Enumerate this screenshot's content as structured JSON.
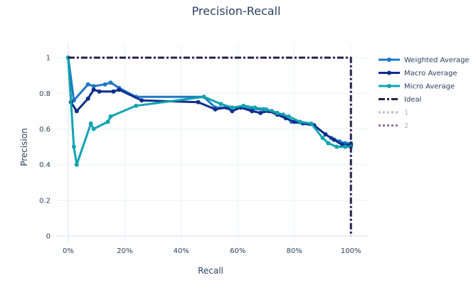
{
  "chart_data": {
    "type": "line",
    "title": "Precision-Recall",
    "xlabel": "Recall",
    "ylabel": "Precision",
    "xlim": [
      -0.04,
      1.06
    ],
    "ylim": [
      -0.04,
      1.08
    ],
    "xticks": [
      0,
      0.2,
      0.4,
      0.6,
      0.8,
      1.0
    ],
    "xtick_labels": [
      "0%",
      "20%",
      "40%",
      "60%",
      "80%",
      "100%"
    ],
    "yticks": [
      0,
      0.2,
      0.4,
      0.6,
      0.8,
      1.0
    ],
    "ytick_labels": [
      "0",
      "0.2",
      "0.4",
      "0.6",
      "0.8",
      "1"
    ],
    "grid": true,
    "legend_position": "right",
    "series": [
      {
        "name": "Weighted Average",
        "color": "#1f77c4",
        "style": "solid-markers",
        "x": [
          0,
          0.02,
          0.07,
          0.09,
          0.13,
          0.15,
          0.18,
          0.24,
          0.48,
          0.52,
          0.57,
          0.61,
          0.65,
          0.69,
          0.72,
          0.76,
          0.79,
          0.83,
          0.87,
          0.91,
          0.93,
          0.96,
          0.98,
          1.0
        ],
        "y": [
          1.0,
          0.76,
          0.85,
          0.84,
          0.85,
          0.86,
          0.83,
          0.78,
          0.78,
          0.72,
          0.72,
          0.72,
          0.71,
          0.71,
          0.7,
          0.68,
          0.64,
          0.63,
          0.62,
          0.57,
          0.55,
          0.53,
          0.52,
          0.52
        ]
      },
      {
        "name": "Macro Average",
        "color": "#0d2d8c",
        "style": "solid-markers",
        "x": [
          0,
          0.01,
          0.03,
          0.07,
          0.09,
          0.11,
          0.16,
          0.18,
          0.26,
          0.46,
          0.52,
          0.56,
          0.58,
          0.61,
          0.65,
          0.68,
          0.71,
          0.74,
          0.77,
          0.8,
          0.87,
          0.91,
          0.94,
          0.97,
          1.0
        ],
        "y": [
          1.0,
          0.75,
          0.7,
          0.77,
          0.82,
          0.81,
          0.81,
          0.82,
          0.76,
          0.75,
          0.71,
          0.72,
          0.7,
          0.72,
          0.7,
          0.69,
          0.7,
          0.68,
          0.66,
          0.64,
          0.62,
          0.57,
          0.54,
          0.51,
          0.51
        ]
      },
      {
        "name": "Micro Average",
        "color": "#0fa3b1",
        "style": "solid-markers",
        "x": [
          0,
          0.02,
          0.03,
          0.08,
          0.09,
          0.14,
          0.15,
          0.24,
          0.48,
          0.54,
          0.58,
          0.62,
          0.66,
          0.7,
          0.74,
          0.78,
          0.82,
          0.86,
          0.9,
          0.92,
          0.95,
          0.98,
          1.0
        ],
        "y": [
          1.0,
          0.5,
          0.4,
          0.63,
          0.6,
          0.64,
          0.67,
          0.73,
          0.78,
          0.74,
          0.72,
          0.73,
          0.72,
          0.71,
          0.69,
          0.67,
          0.64,
          0.63,
          0.55,
          0.52,
          0.5,
          0.5,
          0.5
        ]
      },
      {
        "name": "Ideal",
        "color": "#2b1d4e",
        "style": "dashdot",
        "x": [
          0,
          1.0,
          1.0
        ],
        "y": [
          1.0,
          1.0,
          0
        ]
      },
      {
        "name": "1",
        "color": "#b9b6dd",
        "style": "dot-legendonly",
        "x": [],
        "y": []
      },
      {
        "name": "2",
        "color": "#8c739c",
        "style": "dot-legendonly",
        "x": [],
        "y": []
      }
    ]
  }
}
